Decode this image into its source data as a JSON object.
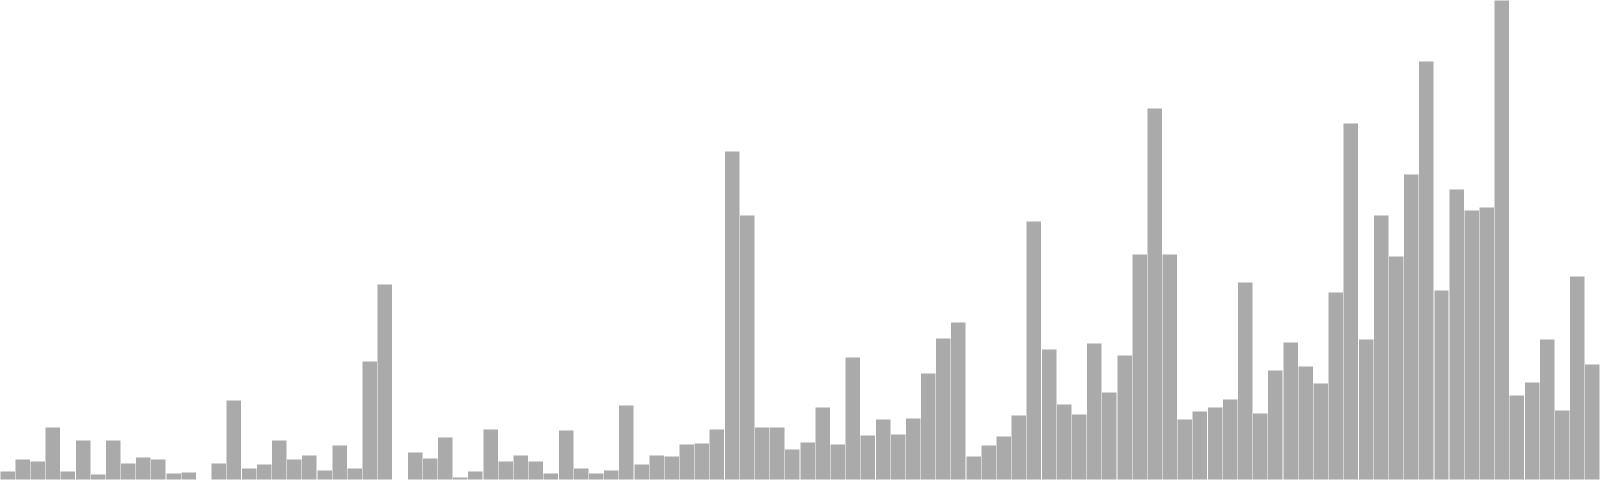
{
  "chart_data": {
    "type": "bar",
    "title": "",
    "xlabel": "",
    "ylabel": "",
    "axes_visible": false,
    "grid": false,
    "legend": "none",
    "ylim": [
      0,
      480
    ],
    "bar_color": "#aaaaaa",
    "bar_edge_color": "#ffffff",
    "values": [
      9,
      21,
      19,
      53,
      9,
      40,
      6,
      40,
      17,
      23,
      21,
      7,
      8,
      0,
      17,
      80,
      12,
      16,
      40,
      21,
      25,
      10,
      35,
      12,
      119,
      196,
      0,
      28,
      22,
      43,
      3,
      9,
      51,
      19,
      25,
      19,
      7,
      50,
      12,
      7,
      10,
      75,
      16,
      25,
      24,
      36,
      37,
      51,
      329,
      265,
      53,
      53,
      31,
      38,
      73,
      36,
      123,
      45,
      61,
      46,
      62,
      107,
      142,
      158,
      24,
      35,
      44,
      65,
      259,
      131,
      76,
      66,
      137,
      88,
      125,
      226,
      372,
      226,
      61,
      69,
      73,
      81,
      198,
      67,
      110,
      138,
      114,
      97,
      188,
      357,
      141,
      265,
      224,
      306,
      419,
      190,
      291,
      270,
      273,
      480,
      85,
      98,
      141,
      70,
      204,
      116
    ]
  }
}
